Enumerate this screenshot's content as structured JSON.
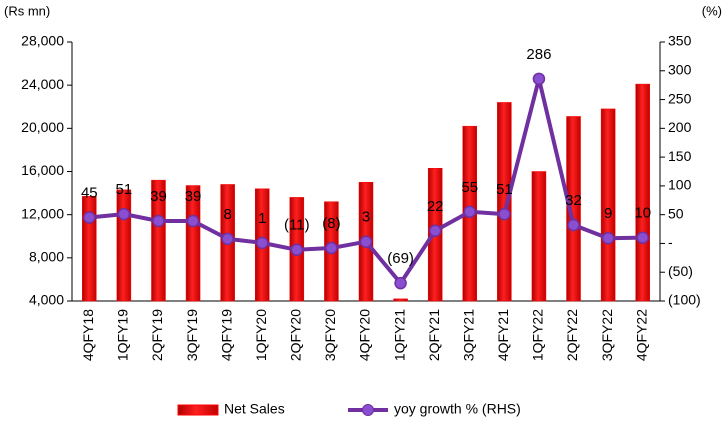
{
  "chart_data": {
    "type": "bar_line",
    "y_label": "(Rs mn)",
    "y2_label": "(%)",
    "categories": [
      "4QFY18",
      "1QFY19",
      "2QFY19",
      "3QFY19",
      "4QFY19",
      "1QFY20",
      "2QFY20",
      "3QFY20",
      "4QFY20",
      "1QFY21",
      "2QFY21",
      "3QFY21",
      "4QFY21",
      "1QFY22",
      "2QFY22",
      "3QFY22",
      "4QFY22"
    ],
    "series": [
      {
        "name": "Net Sales",
        "type": "bar",
        "color": "#ff0000",
        "values": [
          13700,
          14300,
          15200,
          14700,
          14800,
          14400,
          13600,
          13200,
          15000,
          4200,
          16300,
          20200,
          22400,
          16000,
          21100,
          21800,
          24100
        ]
      },
      {
        "name": "yoy growth % (RHS)",
        "type": "line",
        "axis": "y2",
        "color": "#7030a0",
        "values": [
          45,
          51,
          39,
          39,
          8,
          1,
          -11,
          -8,
          3,
          -69,
          22,
          55,
          51,
          286,
          32,
          9,
          10
        ],
        "value_labels": [
          "45",
          "51",
          "39",
          "39",
          "8",
          "1",
          "(11)",
          "(8)",
          "3",
          "(69)",
          "22",
          "55",
          "51",
          "286",
          "32",
          "9",
          "10"
        ]
      }
    ],
    "ylim": [
      4000,
      28000
    ],
    "yticks": [
      {
        "value": 4000,
        "label": "4,000"
      },
      {
        "value": 8000,
        "label": "8,000"
      },
      {
        "value": 12000,
        "label": "12,000"
      },
      {
        "value": 16000,
        "label": "16,000"
      },
      {
        "value": 20000,
        "label": "20,000"
      },
      {
        "value": 24000,
        "label": "24,000"
      },
      {
        "value": 28000,
        "label": "28,000"
      }
    ],
    "y2lim": [
      -100,
      350
    ],
    "y2ticks": [
      {
        "value": -100,
        "label": "(100)"
      },
      {
        "value": -50,
        "label": "(50)"
      },
      {
        "value": 0,
        "label": "-"
      },
      50,
      100,
      150,
      200,
      250,
      300,
      350
    ],
    "legend": "bottom"
  }
}
